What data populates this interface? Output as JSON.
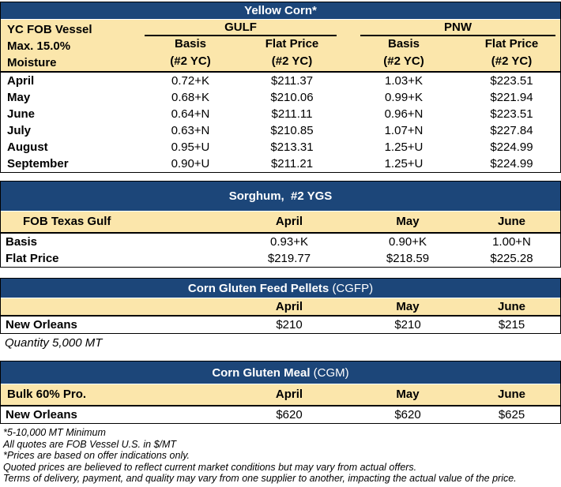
{
  "colors": {
    "navy": "#1C4679",
    "cream": "#FBE6AB",
    "border": "#000000"
  },
  "yellow_corn": {
    "title": "Yellow Corn*",
    "side_label_lines": [
      "YC FOB Vessel",
      "Max. 15.0%",
      "Moisture"
    ],
    "groups": {
      "gulf": "GULF",
      "pnw": "PNW"
    },
    "col_headers": [
      {
        "title": "Basis",
        "sub": "(#2 YC)"
      },
      {
        "title": "Flat Price",
        "sub": "(#2 YC)"
      },
      {
        "title": "Basis",
        "sub": "(#2 YC)"
      },
      {
        "title": "Flat Price",
        "sub": "(#2 YC)"
      }
    ],
    "rows": [
      {
        "month": "April",
        "values": [
          "0.72+K",
          "$211.37",
          "1.03+K",
          "$223.51"
        ]
      },
      {
        "month": "May",
        "values": [
          "0.68+K",
          "$210.06",
          "0.99+K",
          "$221.94"
        ]
      },
      {
        "month": "June",
        "values": [
          "0.64+N",
          "$211.11",
          "0.96+N",
          "$223.51"
        ]
      },
      {
        "month": "July",
        "values": [
          "0.63+N",
          "$210.85",
          "1.07+N",
          "$227.84"
        ]
      },
      {
        "month": "August",
        "values": [
          "0.95+U",
          "$213.31",
          "1.25+U",
          "$224.99"
        ]
      },
      {
        "month": "September",
        "values": [
          "0.90+U",
          "$211.21",
          "1.25+U",
          "$224.99"
        ]
      }
    ]
  },
  "sorghum": {
    "title": "Sorghum,  #2 YGS",
    "side_label": "FOB Texas Gulf",
    "months": [
      "April",
      "May",
      "June"
    ],
    "rows": [
      {
        "label": "Basis",
        "values": [
          "0.93+K",
          "0.90+K",
          "1.00+N"
        ]
      },
      {
        "label": "Flat Price",
        "values": [
          "$219.77",
          "$218.59",
          "$225.28"
        ]
      }
    ]
  },
  "cgfp": {
    "title_main": "Corn Gluten Feed Pellets",
    "title_paren": "(CGFP)",
    "side_label": "",
    "months": [
      "April",
      "May",
      "June"
    ],
    "rows": [
      {
        "label": "New Orleans",
        "values": [
          "$210",
          "$210",
          "$215"
        ]
      }
    ],
    "note": "Quantity 5,000 MT"
  },
  "cgm": {
    "title_main": "Corn Gluten Meal",
    "title_paren": "(CGM)",
    "side_label": "Bulk 60% Pro.",
    "months": [
      "April",
      "May",
      "June"
    ],
    "rows": [
      {
        "label": "New Orleans",
        "values": [
          "$620",
          "$620",
          "$625"
        ]
      }
    ]
  },
  "footnotes": [
    "*5-10,000 MT Minimum",
    "All quotes are FOB Vessel U.S. in $/MT",
    "*Prices are based on offer indications only.",
    "Quoted prices are believed to reflect current market conditions but may vary from actual offers.",
    "Terms of delivery, payment, and quality may vary from one supplier to another, impacting the actual value of the price."
  ]
}
